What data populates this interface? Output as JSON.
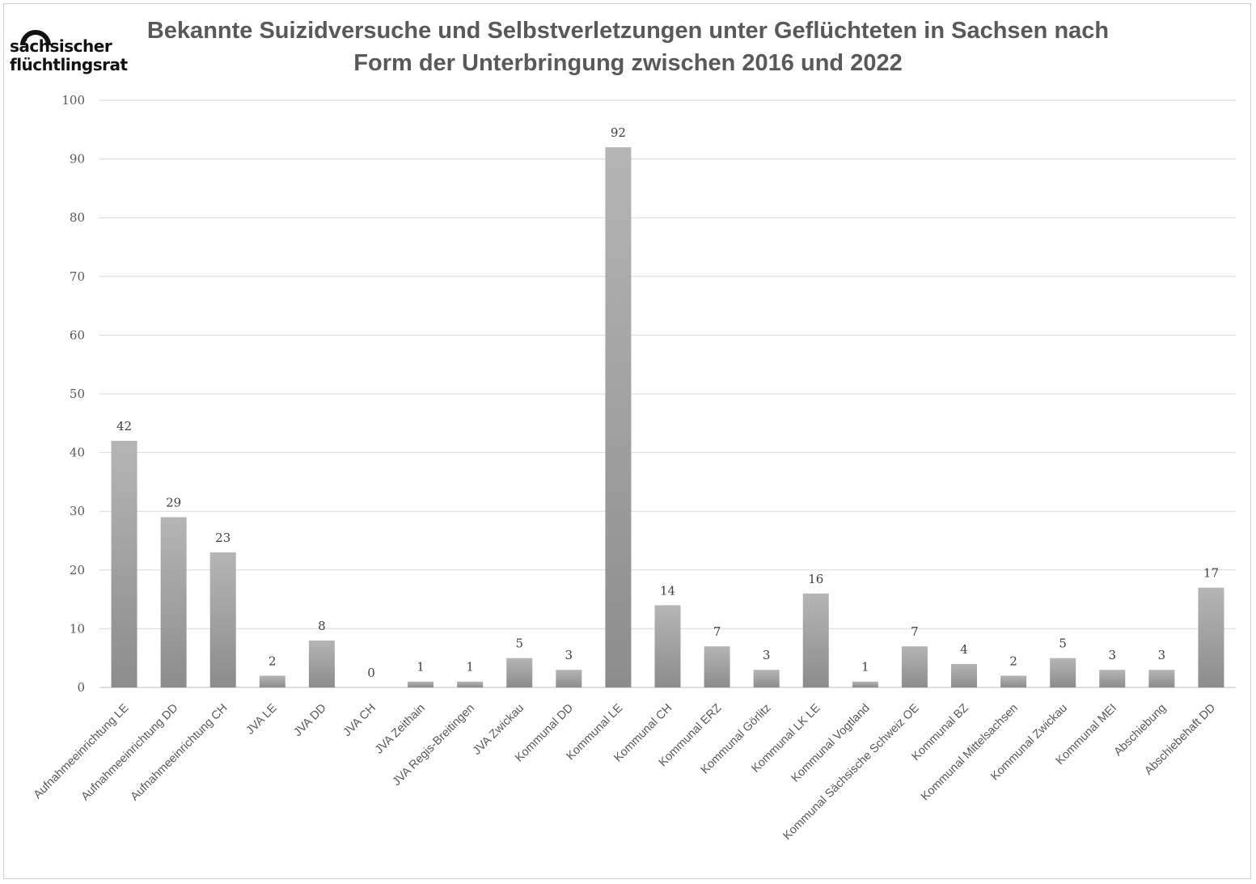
{
  "logo": {
    "line1": "sächsischer",
    "line2": "flüchtlingsrat"
  },
  "title": {
    "line1": "Bekannte Suizidversuche und Selbstverletzungen unter Geflüchteten in Sachsen nach",
    "line2": "Form der Unterbringung zwischen 2016 und 2022"
  },
  "chart_data": {
    "type": "bar",
    "title": "Bekannte Suizidversuche und Selbstverletzungen unter Geflüchteten in Sachsen nach Form der Unterbringung zwischen 2016 und 2022",
    "xlabel": "",
    "ylabel": "",
    "ylim": [
      0,
      100
    ],
    "yticks": [
      0,
      10,
      20,
      30,
      40,
      50,
      60,
      70,
      80,
      90,
      100
    ],
    "grid": true,
    "legend": "none",
    "categories": [
      "Aufnahmeeinrichtung LE",
      "Aufnahmeeinrichtung DD",
      "Aufnahmeeinrichtung CH",
      "JVA LE",
      "JVA DD",
      "JVA CH",
      "JVA Zeithain",
      "JVA Regis-Breitingen",
      "JVA Zwickau",
      "Kommunal DD",
      "Kommunal LE",
      "Kommunal CH",
      "Kommunal ERZ",
      "Kommunal Görlitz",
      "Kommunal LK LE",
      "Kommunal Vogtland",
      "Kommunal Sächsische Schweiz OE",
      "Kommunal BZ",
      "Kommunal Mittelsachsen",
      "Kommunal Zwickau",
      "Kommunal MEI",
      "Abschiebung",
      "Abschiebehaft DD"
    ],
    "values": [
      42,
      29,
      23,
      2,
      8,
      0,
      1,
      1,
      5,
      3,
      92,
      14,
      7,
      3,
      16,
      1,
      7,
      4,
      2,
      5,
      3,
      3,
      17
    ],
    "colors": {
      "bar_light": "#b5b5b5",
      "bar_dark": "#8c8c8c",
      "gridline": "#d9d9d9",
      "axis": "#bfbfbf"
    }
  }
}
